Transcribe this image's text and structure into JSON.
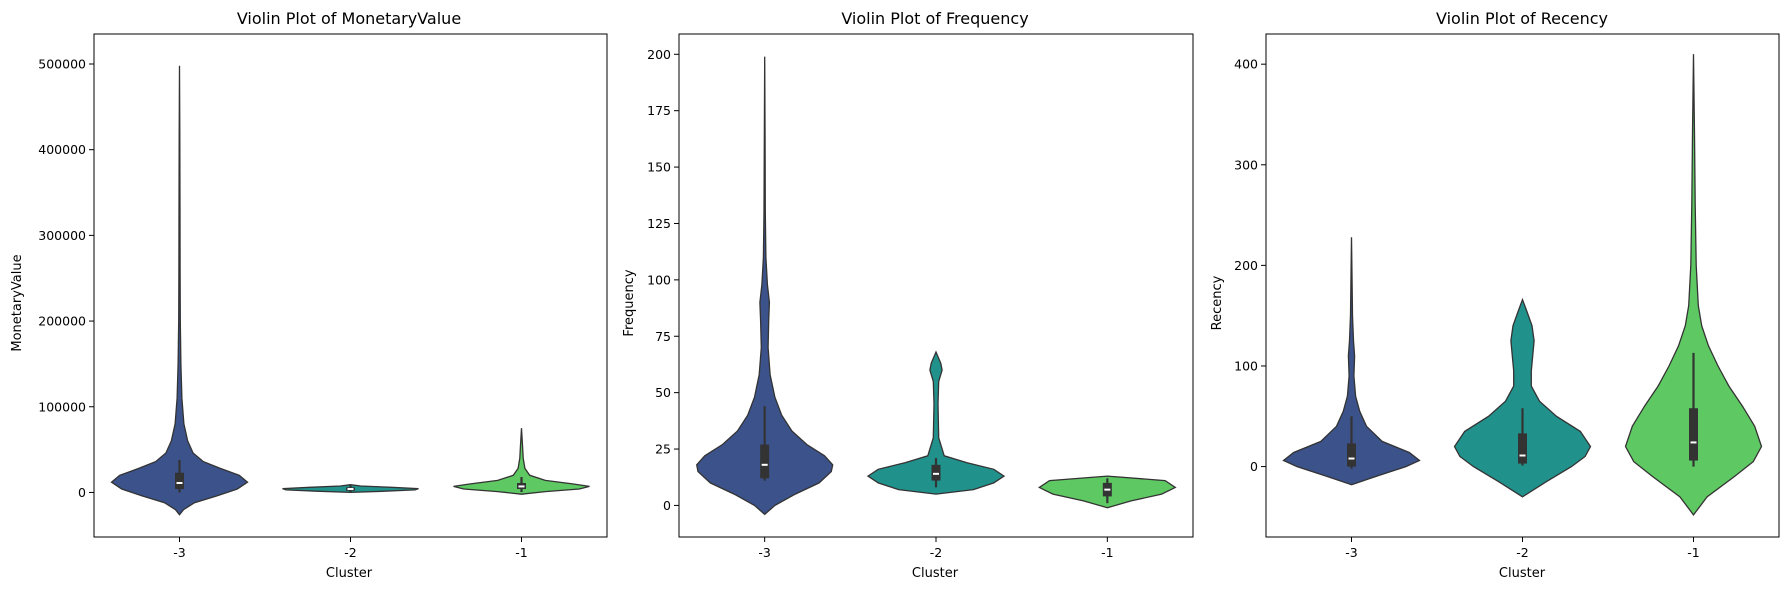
{
  "chart_data": [
    {
      "type": "violin",
      "title": "Violin Plot of MonetaryValue",
      "xlabel": "Cluster",
      "ylabel": "MonetaryValue",
      "categories": [
        "-3",
        "-2",
        "-1"
      ],
      "ylim": [
        -52000,
        535000
      ],
      "yticks": [
        0,
        100000,
        200000,
        300000,
        400000,
        500000
      ],
      "yticklabels": [
        "0",
        "100000",
        "200000",
        "300000",
        "400000",
        "500000"
      ],
      "grid": false,
      "violins": [
        {
          "cluster": "-3",
          "color": "#3b528b",
          "profile": [
            [
              -26000,
              0
            ],
            [
              -20000,
              0.06
            ],
            [
              -12000,
              0.22
            ],
            [
              -4000,
              0.55
            ],
            [
              4000,
              0.85
            ],
            [
              12000,
              1.0
            ],
            [
              20000,
              0.88
            ],
            [
              28000,
              0.6
            ],
            [
              36000,
              0.35
            ],
            [
              46000,
              0.2
            ],
            [
              60000,
              0.12
            ],
            [
              80000,
              0.065
            ],
            [
              110000,
              0.035
            ],
            [
              150000,
              0.02
            ],
            [
              200000,
              0.012
            ],
            [
              260000,
              0.009
            ],
            [
              330000,
              0.007
            ],
            [
              420000,
              0.005
            ],
            [
              498000,
              0
            ]
          ],
          "box": {
            "q1": 4000,
            "median": 11000,
            "q3": 23000,
            "whisker_low": 0,
            "whisker_high": 38000
          }
        },
        {
          "cluster": "-2",
          "color": "#21918c",
          "profile": [
            [
              0,
              0
            ],
            [
              1500,
              0.5
            ],
            [
              3000,
              0.95
            ],
            [
              4500,
              1.0
            ],
            [
              6000,
              0.6
            ],
            [
              7500,
              0.15
            ],
            [
              9000,
              0
            ]
          ],
          "box": {
            "q1": 2000,
            "median": 4000,
            "q3": 6000,
            "whisker_low": 500,
            "whisker_high": 8000
          }
        },
        {
          "cluster": "-1",
          "color": "#5ec962",
          "profile": [
            [
              -2000,
              0
            ],
            [
              1000,
              0.35
            ],
            [
              4000,
              0.85
            ],
            [
              7000,
              1.0
            ],
            [
              10000,
              0.75
            ],
            [
              14000,
              0.35
            ],
            [
              20000,
              0.12
            ],
            [
              28000,
              0.05
            ],
            [
              40000,
              0.025
            ],
            [
              55000,
              0.015
            ],
            [
              75000,
              0
            ]
          ],
          "box": {
            "q1": 4000,
            "median": 7000,
            "q3": 11000,
            "whisker_low": 500,
            "whisker_high": 18000
          }
        }
      ]
    },
    {
      "type": "violin",
      "title": "Violin Plot of Frequency",
      "xlabel": "Cluster",
      "ylabel": "Frequency",
      "categories": [
        "-3",
        "-2",
        "-1"
      ],
      "ylim": [
        -14,
        209
      ],
      "yticks": [
        0,
        25,
        50,
        75,
        100,
        125,
        150,
        175,
        200
      ],
      "yticklabels": [
        "0",
        "25",
        "50",
        "75",
        "100",
        "125",
        "150",
        "175",
        "200"
      ],
      "grid": false,
      "violins": [
        {
          "cluster": "-3",
          "color": "#3b528b",
          "profile": [
            [
              -4,
              0
            ],
            [
              0,
              0.15
            ],
            [
              5,
              0.45
            ],
            [
              10,
              0.8
            ],
            [
              15,
              0.98
            ],
            [
              18,
              1.0
            ],
            [
              22,
              0.88
            ],
            [
              27,
              0.62
            ],
            [
              33,
              0.4
            ],
            [
              40,
              0.25
            ],
            [
              48,
              0.15
            ],
            [
              58,
              0.08
            ],
            [
              70,
              0.05
            ],
            [
              82,
              0.06
            ],
            [
              90,
              0.07
            ],
            [
              98,
              0.04
            ],
            [
              110,
              0.018
            ],
            [
              130,
              0.01
            ],
            [
              160,
              0.006
            ],
            [
              199,
              0
            ]
          ],
          "box": {
            "q1": 12,
            "median": 18,
            "q3": 27,
            "whisker_low": 11,
            "whisker_high": 44
          }
        },
        {
          "cluster": "-2",
          "color": "#21918c",
          "profile": [
            [
              5,
              0
            ],
            [
              7,
              0.55
            ],
            [
              10,
              0.85
            ],
            [
              13,
              1.0
            ],
            [
              16,
              0.85
            ],
            [
              19,
              0.45
            ],
            [
              22,
              0.12
            ],
            [
              30,
              0.04
            ],
            [
              45,
              0.03
            ],
            [
              55,
              0.04
            ],
            [
              60,
              0.09
            ],
            [
              63,
              0.07
            ],
            [
              68,
              0
            ]
          ],
          "box": {
            "q1": 11,
            "median": 14,
            "q3": 18,
            "whisker_low": 8,
            "whisker_high": 21
          }
        },
        {
          "cluster": "-1",
          "color": "#5ec962",
          "profile": [
            [
              -1,
              0
            ],
            [
              2,
              0.35
            ],
            [
              5,
              0.8
            ],
            [
              8,
              1.0
            ],
            [
              11,
              0.85
            ],
            [
              13,
              0
            ]
          ],
          "box": {
            "q1": 4,
            "median": 7,
            "q3": 10,
            "whisker_low": 1,
            "whisker_high": 12
          }
        }
      ]
    },
    {
      "type": "violin",
      "title": "Violin Plot of Recency",
      "xlabel": "Cluster",
      "ylabel": "Recency",
      "categories": [
        "-3",
        "-2",
        "-1"
      ],
      "ylim": [
        -70,
        430
      ],
      "yticks": [
        0,
        100,
        200,
        300,
        400
      ],
      "yticklabels": [
        "0",
        "100",
        "200",
        "300",
        "400"
      ],
      "grid": false,
      "violins": [
        {
          "cluster": "-3",
          "color": "#3b528b",
          "profile": [
            [
              -18,
              0
            ],
            [
              -10,
              0.35
            ],
            [
              0,
              0.8
            ],
            [
              6,
              1.0
            ],
            [
              14,
              0.85
            ],
            [
              25,
              0.45
            ],
            [
              40,
              0.22
            ],
            [
              55,
              0.12
            ],
            [
              70,
              0.06
            ],
            [
              90,
              0.035
            ],
            [
              110,
              0.045
            ],
            [
              125,
              0.03
            ],
            [
              150,
              0.015
            ],
            [
              190,
              0.008
            ],
            [
              228,
              0
            ]
          ],
          "box": {
            "q1": 0,
            "median": 8,
            "q3": 23,
            "whisker_low": -2,
            "whisker_high": 50
          }
        },
        {
          "cluster": "-2",
          "color": "#21918c",
          "profile": [
            [
              -30,
              0
            ],
            [
              -15,
              0.35
            ],
            [
              0,
              0.72
            ],
            [
              10,
              0.92
            ],
            [
              20,
              1.0
            ],
            [
              35,
              0.85
            ],
            [
              50,
              0.5
            ],
            [
              65,
              0.25
            ],
            [
              80,
              0.13
            ],
            [
              95,
              0.13
            ],
            [
              110,
              0.15
            ],
            [
              125,
              0.17
            ],
            [
              140,
              0.14
            ],
            [
              155,
              0.06
            ],
            [
              166,
              0
            ]
          ],
          "box": {
            "q1": 3,
            "median": 11,
            "q3": 33,
            "whisker_low": 1,
            "whisker_high": 58
          }
        },
        {
          "cluster": "-1",
          "color": "#5ec962",
          "profile": [
            [
              -48,
              0
            ],
            [
              -30,
              0.2
            ],
            [
              -10,
              0.6
            ],
            [
              5,
              0.88
            ],
            [
              20,
              1.0
            ],
            [
              40,
              0.9
            ],
            [
              60,
              0.72
            ],
            [
              80,
              0.52
            ],
            [
              100,
              0.36
            ],
            [
              120,
              0.22
            ],
            [
              140,
              0.12
            ],
            [
              160,
              0.07
            ],
            [
              200,
              0.04
            ],
            [
              260,
              0.025
            ],
            [
              330,
              0.015
            ],
            [
              410,
              0
            ]
          ],
          "box": {
            "q1": 6,
            "median": 24,
            "q3": 58,
            "whisker_low": 0,
            "whisker_high": 113
          }
        }
      ]
    }
  ]
}
